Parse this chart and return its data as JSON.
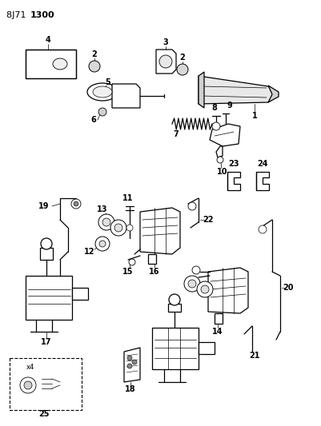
{
  "bg": "#ffffff",
  "figsize": [
    4.01,
    5.33
  ],
  "dpi": 100,
  "title_normal": "8J71 ",
  "title_bold": "1300",
  "lw": 0.9
}
